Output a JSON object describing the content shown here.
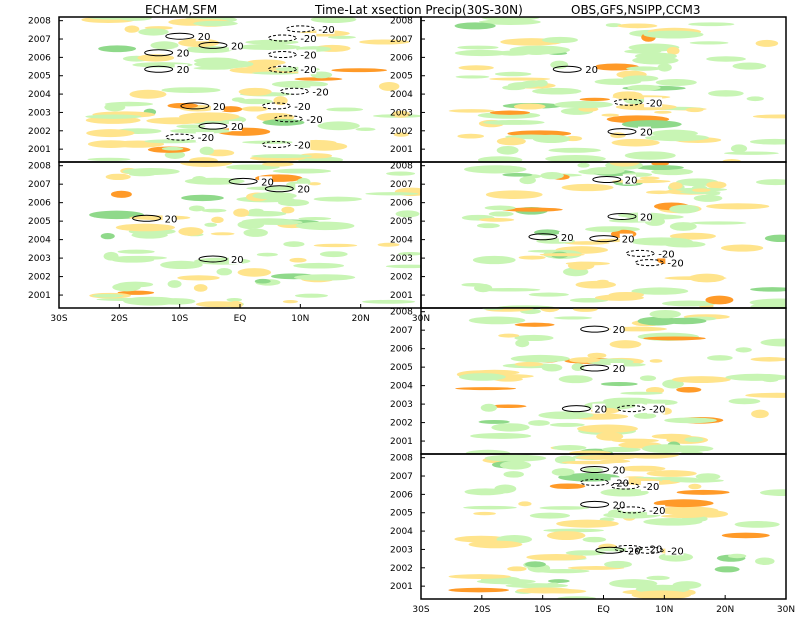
{
  "titles": {
    "left": "ECHAM,SFM",
    "center": "Time-Lat xsection Precip(30S-30N)",
    "right": "OBS,GFS,NSIPP,CCM3"
  },
  "colors": {
    "positive_light": "#c8f5b4",
    "positive_dark": "#8fd98a",
    "negative_light": "#ffe48c",
    "negative_dark": "#ff9a28",
    "contour": "#000000",
    "frame": "#000000"
  },
  "chart_data": [
    {
      "type": "heatmap",
      "panel": "ECHAM",
      "xlim": [
        -30,
        30
      ],
      "ylim": [
        2000.3,
        2008.2
      ],
      "x_ticks": [
        "30S",
        "20S",
        "10S",
        "EQ",
        "10N",
        "20N",
        "30N"
      ],
      "y_ticks": [
        "2001",
        "2002",
        "2003",
        "2004",
        "2005",
        "2006",
        "2007",
        "2008"
      ],
      "contour_levels": [
        -20,
        20
      ],
      "contour_labels": [
        {
          "text": "20",
          "x": -7,
          "y": 2007.1
        },
        {
          "text": "-20",
          "x": 13,
          "y": 2007.5
        },
        {
          "text": "20",
          "x": -1.5,
          "y": 2006.6
        },
        {
          "text": "-20",
          "x": 10,
          "y": 2007.0
        },
        {
          "text": "20",
          "x": -10.5,
          "y": 2006.2
        },
        {
          "text": "-20",
          "x": 10,
          "y": 2006.1
        },
        {
          "text": "20",
          "x": -10.5,
          "y": 2005.3
        },
        {
          "text": "-20",
          "x": 10,
          "y": 2005.3
        },
        {
          "text": "-20",
          "x": 12,
          "y": 2004.1
        },
        {
          "text": "20",
          "x": -4.5,
          "y": 2003.3
        },
        {
          "text": "-20",
          "x": 9,
          "y": 2003.3
        },
        {
          "text": "-20",
          "x": 11,
          "y": 2002.6
        },
        {
          "text": "20",
          "x": -1.5,
          "y": 2002.2
        },
        {
          "text": "-20",
          "x": -7,
          "y": 2001.6
        },
        {
          "text": "-20",
          "x": 9,
          "y": 2001.2
        }
      ]
    },
    {
      "type": "heatmap",
      "panel": "SFM",
      "xlim": [
        -30,
        30
      ],
      "ylim": [
        2000.3,
        2008.2
      ],
      "x_ticks": [
        "30S",
        "20S",
        "10S",
        "EQ",
        "10N",
        "20N",
        "30N"
      ],
      "y_ticks": [
        "2001",
        "2002",
        "2003",
        "2004",
        "2005",
        "2006",
        "2007",
        "2008"
      ],
      "contour_levels": [
        -20,
        20
      ],
      "contour_labels": [
        {
          "text": "20",
          "x": 3.5,
          "y": 2007.1
        },
        {
          "text": "20",
          "x": 9.5,
          "y": 2006.7
        },
        {
          "text": "20",
          "x": -12.5,
          "y": 2005.1
        },
        {
          "text": "20",
          "x": -1.5,
          "y": 2002.9
        }
      ]
    },
    {
      "type": "heatmap",
      "panel": "OBS",
      "xlim": [
        -30,
        30
      ],
      "ylim": [
        2000.3,
        2008.2
      ],
      "x_ticks": [
        "30S",
        "20S",
        "10S",
        "EQ",
        "10N",
        "20N",
        "30N"
      ],
      "y_ticks": [
        "2001",
        "2002",
        "2003",
        "2004",
        "2005",
        "2006",
        "2007",
        "2008"
      ],
      "contour_levels": [
        -20,
        20
      ],
      "contour_labels": [
        {
          "text": "20",
          "x": -3,
          "y": 2005.3
        },
        {
          "text": "-20",
          "x": 7,
          "y": 2003.5
        },
        {
          "text": "20",
          "x": 6,
          "y": 2001.9
        }
      ]
    },
    {
      "type": "heatmap",
      "panel": "GFS",
      "xlim": [
        -30,
        30
      ],
      "ylim": [
        2000.3,
        2008.2
      ],
      "x_ticks": [
        "30S",
        "20S",
        "10S",
        "EQ",
        "10N",
        "20N",
        "30N"
      ],
      "y_ticks": [
        "2001",
        "2002",
        "2003",
        "2004",
        "2005",
        "2006",
        "2007",
        "2008"
      ],
      "contour_levels": [
        -20,
        20
      ],
      "contour_labels": [
        {
          "text": "20",
          "x": 3.5,
          "y": 2007.2
        },
        {
          "text": "20",
          "x": 6,
          "y": 2005.2
        },
        {
          "text": "20",
          "x": 3,
          "y": 2004.0
        },
        {
          "text": "-20",
          "x": 9,
          "y": 2003.2
        },
        {
          "text": "20",
          "x": -7,
          "y": 2004.1
        },
        {
          "text": "-20",
          "x": 10.5,
          "y": 2002.7
        }
      ]
    },
    {
      "type": "heatmap",
      "panel": "NSIPP",
      "xlim": [
        -30,
        30
      ],
      "ylim": [
        2000.3,
        2008.2
      ],
      "x_ticks": [
        "30S",
        "20S",
        "10S",
        "EQ",
        "10N",
        "20N",
        "30N"
      ],
      "y_ticks": [
        "2001",
        "2002",
        "2003",
        "2004",
        "2005",
        "2006",
        "2007",
        "2008"
      ],
      "contour_levels": [
        -20,
        20
      ],
      "contour_labels": [
        {
          "text": "20",
          "x": 1.5,
          "y": 2007.0
        },
        {
          "text": "20",
          "x": 1.5,
          "y": 2004.9
        },
        {
          "text": "20",
          "x": -1.5,
          "y": 2002.7
        },
        {
          "text": "-20",
          "x": 7.5,
          "y": 2002.7
        }
      ]
    },
    {
      "type": "heatmap",
      "panel": "CCM3",
      "xlim": [
        -30,
        30
      ],
      "ylim": [
        2000.3,
        2008.2
      ],
      "x_ticks": [
        "30S",
        "20S",
        "10S",
        "EQ",
        "10N",
        "20N",
        "30N"
      ],
      "y_ticks": [
        "2001",
        "2002",
        "2003",
        "2004",
        "2005",
        "2006",
        "2007",
        "2008"
      ],
      "contour_levels": [
        -20,
        20
      ],
      "contour_labels": [
        {
          "text": "20",
          "x": 1.5,
          "y": 2007.3
        },
        {
          "text": "20",
          "x": 1.5,
          "y": 2005.4
        },
        {
          "text": "-20",
          "x": 7.5,
          "y": 2005.1
        },
        {
          "text": "20",
          "x": 4,
          "y": 2002.9
        },
        {
          "text": "-20",
          "x": 7,
          "y": 2003.0
        },
        {
          "text": "-20",
          "x": 1.5,
          "y": 2006.6
        },
        {
          "text": "-20",
          "x": 6.5,
          "y": 2006.4
        },
        {
          "text": "-20",
          "x": 10.5,
          "y": 2002.9
        }
      ]
    }
  ]
}
